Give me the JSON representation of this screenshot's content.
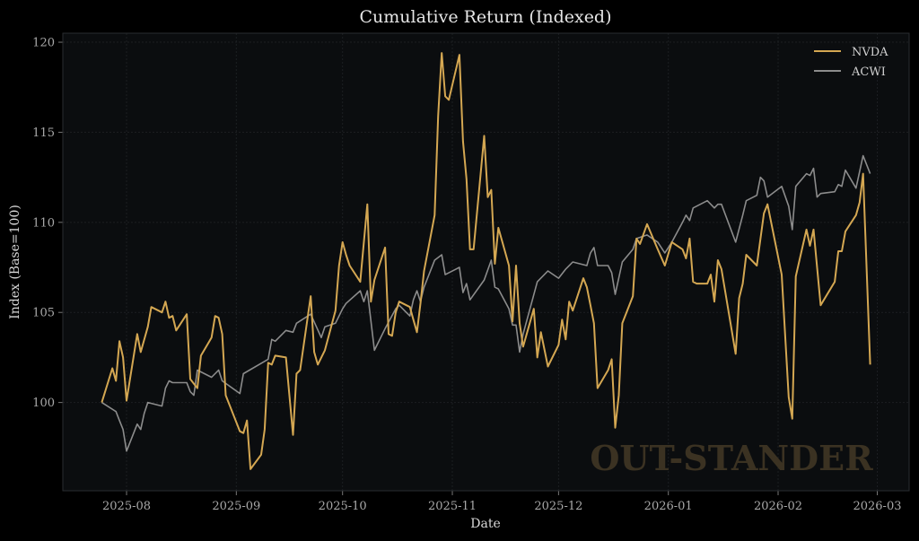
{
  "chart_data": {
    "type": "line",
    "title": "Cumulative Return (Indexed)",
    "xlabel": "Date",
    "ylabel": "Index (Base=100)",
    "xlim": [
      "2025-07-14",
      "2026-03-10"
    ],
    "ylim": [
      95.1,
      120.5
    ],
    "x_ticks": [
      "2025-08",
      "2025-09",
      "2025-10",
      "2025-11",
      "2025-12",
      "2026-01",
      "2026-02",
      "2026-03"
    ],
    "y_ticks": [
      100,
      105,
      110,
      115,
      120
    ],
    "grid": true,
    "legend_placement": "top-right",
    "watermark": "OUT-STANDER",
    "colors": {
      "background": "#000000",
      "axes_background": "#0b0d0f",
      "NVDA": "#d4a752",
      "ACWI": "#8c8c8c"
    },
    "series": [
      {
        "name": "NVDA",
        "points": [
          [
            "2025-07-25",
            100.0
          ],
          [
            "2025-07-28",
            101.9
          ],
          [
            "2025-07-29",
            101.2
          ],
          [
            "2025-07-30",
            103.4
          ],
          [
            "2025-07-31",
            102.5
          ],
          [
            "2025-08-01",
            100.1
          ],
          [
            "2025-08-04",
            103.8
          ],
          [
            "2025-08-05",
            102.8
          ],
          [
            "2025-08-07",
            104.2
          ],
          [
            "2025-08-08",
            105.3
          ],
          [
            "2025-08-11",
            105.0
          ],
          [
            "2025-08-12",
            105.6
          ],
          [
            "2025-08-13",
            104.7
          ],
          [
            "2025-08-14",
            104.8
          ],
          [
            "2025-08-15",
            104.0
          ],
          [
            "2025-08-18",
            104.9
          ],
          [
            "2025-08-19",
            101.3
          ],
          [
            "2025-08-21",
            100.8
          ],
          [
            "2025-08-22",
            102.6
          ],
          [
            "2025-08-25",
            103.6
          ],
          [
            "2025-08-26",
            104.8
          ],
          [
            "2025-08-27",
            104.7
          ],
          [
            "2025-08-28",
            103.8
          ],
          [
            "2025-08-29",
            100.4
          ],
          [
            "2025-09-02",
            98.4
          ],
          [
            "2025-09-03",
            98.3
          ],
          [
            "2025-09-04",
            99.0
          ],
          [
            "2025-09-05",
            96.3
          ],
          [
            "2025-09-08",
            97.1
          ],
          [
            "2025-09-09",
            98.5
          ],
          [
            "2025-09-10",
            102.2
          ],
          [
            "2025-09-11",
            102.1
          ],
          [
            "2025-09-12",
            102.6
          ],
          [
            "2025-09-15",
            102.5
          ],
          [
            "2025-09-17",
            98.2
          ],
          [
            "2025-09-18",
            101.6
          ],
          [
            "2025-09-19",
            101.8
          ],
          [
            "2025-09-22",
            105.9
          ],
          [
            "2025-09-23",
            102.8
          ],
          [
            "2025-09-24",
            102.1
          ],
          [
            "2025-09-26",
            102.9
          ],
          [
            "2025-09-29",
            105.1
          ],
          [
            "2025-09-30",
            107.6
          ],
          [
            "2025-10-01",
            108.9
          ],
          [
            "2025-10-02",
            108.2
          ],
          [
            "2025-10-03",
            107.6
          ],
          [
            "2025-10-06",
            106.7
          ],
          [
            "2025-10-08",
            111.0
          ],
          [
            "2025-10-09",
            105.6
          ],
          [
            "2025-10-10",
            106.8
          ],
          [
            "2025-10-13",
            108.6
          ],
          [
            "2025-10-14",
            103.8
          ],
          [
            "2025-10-15",
            103.7
          ],
          [
            "2025-10-16",
            105.0
          ],
          [
            "2025-10-17",
            105.6
          ],
          [
            "2025-10-20",
            105.3
          ],
          [
            "2025-10-21",
            104.6
          ],
          [
            "2025-10-22",
            103.9
          ],
          [
            "2025-10-23",
            105.5
          ],
          [
            "2025-10-24",
            107.3
          ],
          [
            "2025-10-27",
            110.4
          ],
          [
            "2025-10-28",
            115.9
          ],
          [
            "2025-10-29",
            119.4
          ],
          [
            "2025-10-30",
            117.0
          ],
          [
            "2025-10-31",
            116.8
          ],
          [
            "2025-11-03",
            119.3
          ],
          [
            "2025-11-04",
            114.5
          ],
          [
            "2025-11-05",
            112.4
          ],
          [
            "2025-11-06",
            108.5
          ],
          [
            "2025-11-07",
            108.5
          ],
          [
            "2025-11-10",
            114.8
          ],
          [
            "2025-11-11",
            111.4
          ],
          [
            "2025-11-12",
            111.8
          ],
          [
            "2025-11-13",
            107.7
          ],
          [
            "2025-11-14",
            109.7
          ],
          [
            "2025-11-17",
            107.6
          ],
          [
            "2025-11-18",
            104.5
          ],
          [
            "2025-11-19",
            107.6
          ],
          [
            "2025-11-20",
            104.4
          ],
          [
            "2025-11-21",
            103.1
          ],
          [
            "2025-11-24",
            105.2
          ],
          [
            "2025-11-25",
            102.5
          ],
          [
            "2025-11-26",
            103.9
          ],
          [
            "2025-11-28",
            102.0
          ],
          [
            "2025-12-01",
            103.2
          ],
          [
            "2025-12-02",
            104.6
          ],
          [
            "2025-12-03",
            103.5
          ],
          [
            "2025-12-04",
            105.6
          ],
          [
            "2025-12-05",
            105.1
          ],
          [
            "2025-12-08",
            106.9
          ],
          [
            "2025-12-09",
            106.4
          ],
          [
            "2025-12-10",
            105.4
          ],
          [
            "2025-12-11",
            104.4
          ],
          [
            "2025-12-12",
            100.8
          ],
          [
            "2025-12-15",
            101.8
          ],
          [
            "2025-12-16",
            102.4
          ],
          [
            "2025-12-17",
            98.6
          ],
          [
            "2025-12-18",
            100.4
          ],
          [
            "2025-12-19",
            104.4
          ],
          [
            "2025-12-22",
            105.9
          ],
          [
            "2025-12-23",
            109.1
          ],
          [
            "2025-12-24",
            108.8
          ],
          [
            "2025-12-26",
            109.9
          ],
          [
            "2025-12-29",
            108.5
          ],
          [
            "2025-12-31",
            107.6
          ],
          [
            "2026-01-02",
            108.9
          ],
          [
            "2026-01-05",
            108.5
          ],
          [
            "2026-01-06",
            108.0
          ],
          [
            "2026-01-07",
            109.1
          ],
          [
            "2026-01-08",
            106.7
          ],
          [
            "2026-01-09",
            106.6
          ],
          [
            "2026-01-12",
            106.6
          ],
          [
            "2026-01-13",
            107.1
          ],
          [
            "2026-01-14",
            105.6
          ],
          [
            "2026-01-15",
            107.9
          ],
          [
            "2026-01-16",
            107.4
          ],
          [
            "2026-01-20",
            102.7
          ],
          [
            "2026-01-21",
            105.8
          ],
          [
            "2026-01-22",
            106.6
          ],
          [
            "2026-01-23",
            108.2
          ],
          [
            "2026-01-26",
            107.6
          ],
          [
            "2026-01-28",
            110.5
          ],
          [
            "2026-01-29",
            111.0
          ],
          [
            "2026-02-02",
            107.1
          ],
          [
            "2026-02-04",
            100.3
          ],
          [
            "2026-02-05",
            99.1
          ],
          [
            "2026-02-06",
            107.0
          ],
          [
            "2026-02-09",
            109.6
          ],
          [
            "2026-02-10",
            108.7
          ],
          [
            "2026-02-11",
            109.6
          ],
          [
            "2026-02-13",
            105.4
          ],
          [
            "2026-02-17",
            106.7
          ],
          [
            "2026-02-18",
            108.4
          ],
          [
            "2026-02-19",
            108.4
          ],
          [
            "2026-02-20",
            109.5
          ],
          [
            "2026-02-23",
            110.4
          ],
          [
            "2026-02-24",
            111.1
          ],
          [
            "2026-02-25",
            112.7
          ],
          [
            "2026-02-27",
            102.1
          ]
        ]
      },
      {
        "name": "ACWI",
        "points": [
          [
            "2025-07-25",
            100.0
          ],
          [
            "2025-07-29",
            99.5
          ],
          [
            "2025-07-30",
            99.0
          ],
          [
            "2025-07-31",
            98.5
          ],
          [
            "2025-08-01",
            97.3
          ],
          [
            "2025-08-04",
            98.8
          ],
          [
            "2025-08-05",
            98.5
          ],
          [
            "2025-08-06",
            99.4
          ],
          [
            "2025-08-07",
            100.0
          ],
          [
            "2025-08-11",
            99.8
          ],
          [
            "2025-08-12",
            100.8
          ],
          [
            "2025-08-13",
            101.2
          ],
          [
            "2025-08-14",
            101.1
          ],
          [
            "2025-08-18",
            101.1
          ],
          [
            "2025-08-19",
            100.6
          ],
          [
            "2025-08-20",
            100.4
          ],
          [
            "2025-08-21",
            101.8
          ],
          [
            "2025-08-25",
            101.4
          ],
          [
            "2025-08-27",
            101.8
          ],
          [
            "2025-08-28",
            101.2
          ],
          [
            "2025-09-02",
            100.5
          ],
          [
            "2025-09-03",
            101.6
          ],
          [
            "2025-09-10",
            102.4
          ],
          [
            "2025-09-11",
            103.5
          ],
          [
            "2025-09-12",
            103.4
          ],
          [
            "2025-09-15",
            104.0
          ],
          [
            "2025-09-17",
            103.9
          ],
          [
            "2025-09-18",
            104.4
          ],
          [
            "2025-09-22",
            104.9
          ],
          [
            "2025-09-25",
            103.6
          ],
          [
            "2025-09-26",
            104.2
          ],
          [
            "2025-09-29",
            104.4
          ],
          [
            "2025-10-01",
            105.2
          ],
          [
            "2025-10-02",
            105.5
          ],
          [
            "2025-10-06",
            106.2
          ],
          [
            "2025-10-07",
            105.6
          ],
          [
            "2025-10-08",
            106.2
          ],
          [
            "2025-10-10",
            102.9
          ],
          [
            "2025-10-13",
            104.1
          ],
          [
            "2025-10-16",
            105.2
          ],
          [
            "2025-10-17",
            105.4
          ],
          [
            "2025-10-20",
            104.8
          ],
          [
            "2025-10-21",
            105.7
          ],
          [
            "2025-10-22",
            106.2
          ],
          [
            "2025-10-23",
            105.6
          ],
          [
            "2025-10-24",
            106.4
          ],
          [
            "2025-10-27",
            107.9
          ],
          [
            "2025-10-29",
            108.2
          ],
          [
            "2025-10-30",
            107.1
          ],
          [
            "2025-11-03",
            107.5
          ],
          [
            "2025-11-04",
            106.1
          ],
          [
            "2025-11-05",
            106.6
          ],
          [
            "2025-11-06",
            105.7
          ],
          [
            "2025-11-10",
            106.8
          ],
          [
            "2025-11-12",
            107.9
          ],
          [
            "2025-11-13",
            106.4
          ],
          [
            "2025-11-14",
            106.3
          ],
          [
            "2025-11-17",
            105.2
          ],
          [
            "2025-11-18",
            104.3
          ],
          [
            "2025-11-19",
            104.3
          ],
          [
            "2025-11-20",
            102.8
          ],
          [
            "2025-11-21",
            103.8
          ],
          [
            "2025-11-25",
            106.7
          ],
          [
            "2025-11-28",
            107.3
          ],
          [
            "2025-12-01",
            106.9
          ],
          [
            "2025-12-03",
            107.4
          ],
          [
            "2025-12-05",
            107.8
          ],
          [
            "2025-12-09",
            107.6
          ],
          [
            "2025-12-10",
            108.3
          ],
          [
            "2025-12-11",
            108.6
          ],
          [
            "2025-12-12",
            107.6
          ],
          [
            "2025-12-15",
            107.6
          ],
          [
            "2025-12-16",
            107.2
          ],
          [
            "2025-12-17",
            106.0
          ],
          [
            "2025-12-19",
            107.8
          ],
          [
            "2025-12-22",
            108.5
          ],
          [
            "2025-12-23",
            109.1
          ],
          [
            "2025-12-26",
            109.3
          ],
          [
            "2025-12-29",
            108.9
          ],
          [
            "2025-12-31",
            108.3
          ],
          [
            "2026-01-02",
            108.9
          ],
          [
            "2026-01-05",
            110.0
          ],
          [
            "2026-01-06",
            110.4
          ],
          [
            "2026-01-07",
            110.1
          ],
          [
            "2026-01-08",
            110.8
          ],
          [
            "2026-01-12",
            111.2
          ],
          [
            "2026-01-14",
            110.8
          ],
          [
            "2026-01-15",
            111.0
          ],
          [
            "2026-01-16",
            111.0
          ],
          [
            "2026-01-20",
            108.9
          ],
          [
            "2026-01-22",
            110.4
          ],
          [
            "2026-01-23",
            111.2
          ],
          [
            "2026-01-26",
            111.5
          ],
          [
            "2026-01-27",
            112.5
          ],
          [
            "2026-01-28",
            112.3
          ],
          [
            "2026-01-29",
            111.4
          ],
          [
            "2026-02-02",
            112.0
          ],
          [
            "2026-02-04",
            110.9
          ],
          [
            "2026-02-05",
            109.6
          ],
          [
            "2026-02-06",
            112.0
          ],
          [
            "2026-02-09",
            112.7
          ],
          [
            "2026-02-10",
            112.6
          ],
          [
            "2026-02-11",
            113.0
          ],
          [
            "2026-02-12",
            111.4
          ],
          [
            "2026-02-13",
            111.6
          ],
          [
            "2026-02-17",
            111.7
          ],
          [
            "2026-02-18",
            112.1
          ],
          [
            "2026-02-19",
            112.0
          ],
          [
            "2026-02-20",
            112.9
          ],
          [
            "2026-02-23",
            111.9
          ],
          [
            "2026-02-25",
            113.7
          ],
          [
            "2026-02-27",
            112.7
          ]
        ]
      }
    ]
  }
}
